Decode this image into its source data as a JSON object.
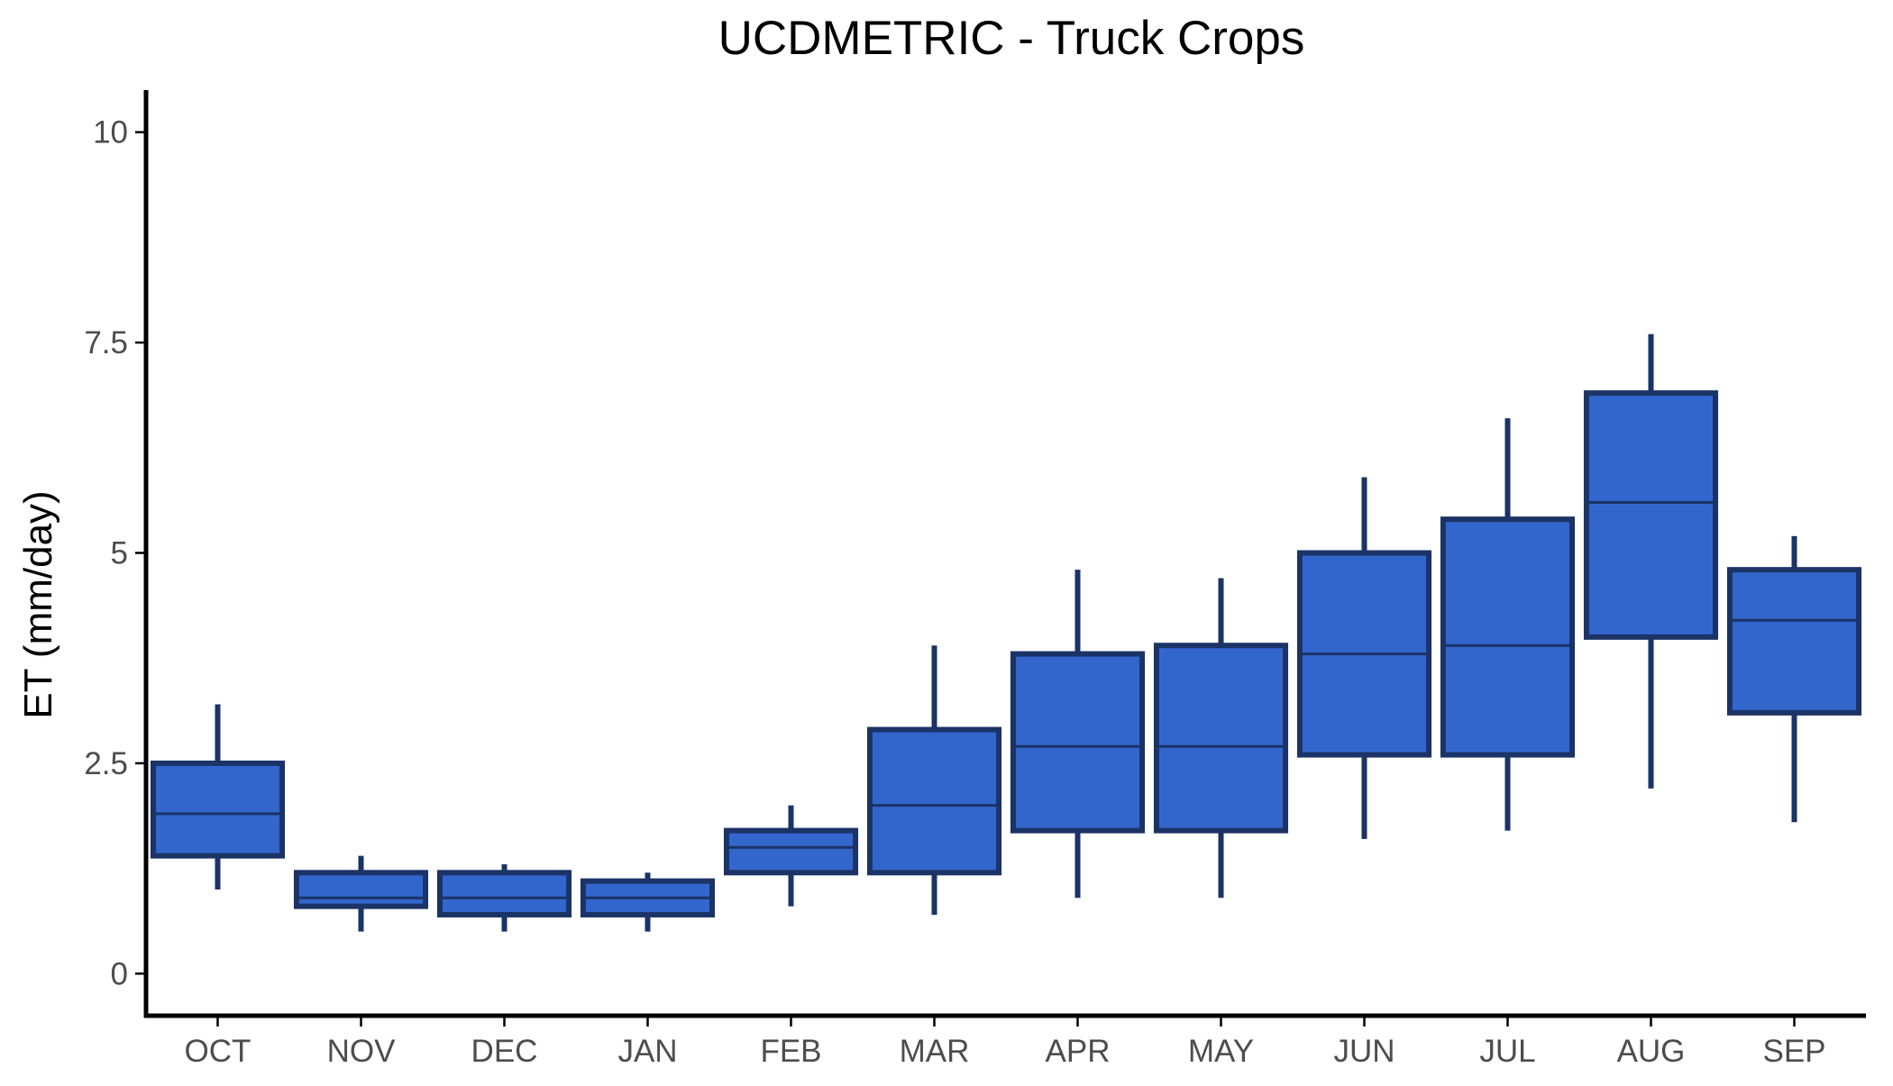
{
  "chart_data": {
    "type": "box",
    "title": "UCDMETRIC - Truck Crops",
    "xlabel": "",
    "ylabel": "ET (mm/day)",
    "ylim": [
      -0.5,
      10.5
    ],
    "yticks": [
      0,
      2.5,
      5,
      7.5,
      10
    ],
    "ytick_labels": [
      "0",
      "2.5",
      "5",
      "7.5",
      "10"
    ],
    "grid": false,
    "legend": "none",
    "colors": {
      "box_fill": "#3366CC",
      "box_stroke": "#1B3366",
      "axis": "#000000",
      "tick_text": "#4D4D4D"
    },
    "categories": [
      "OCT",
      "NOV",
      "DEC",
      "JAN",
      "FEB",
      "MAR",
      "APR",
      "MAY",
      "JUN",
      "JUL",
      "AUG",
      "SEP"
    ],
    "boxes": [
      {
        "min": 1.0,
        "q1": 1.4,
        "median": 1.9,
        "q3": 2.5,
        "max": 3.2
      },
      {
        "min": 0.5,
        "q1": 0.8,
        "median": 0.9,
        "q3": 1.2,
        "max": 1.4
      },
      {
        "min": 0.5,
        "q1": 0.7,
        "median": 0.9,
        "q3": 1.2,
        "max": 1.3
      },
      {
        "min": 0.5,
        "q1": 0.7,
        "median": 0.9,
        "q3": 1.1,
        "max": 1.2
      },
      {
        "min": 0.8,
        "q1": 1.2,
        "median": 1.5,
        "q3": 1.7,
        "max": 2.0
      },
      {
        "min": 0.7,
        "q1": 1.2,
        "median": 2.0,
        "q3": 2.9,
        "max": 3.9
      },
      {
        "min": 0.9,
        "q1": 1.7,
        "median": 2.7,
        "q3": 3.8,
        "max": 4.8
      },
      {
        "min": 0.9,
        "q1": 1.7,
        "median": 2.7,
        "q3": 3.9,
        "max": 4.7
      },
      {
        "min": 1.6,
        "q1": 2.6,
        "median": 3.8,
        "q3": 5.0,
        "max": 5.9
      },
      {
        "min": 1.7,
        "q1": 2.6,
        "median": 3.9,
        "q3": 5.4,
        "max": 6.6
      },
      {
        "min": 2.2,
        "q1": 4.0,
        "median": 5.6,
        "q3": 6.9,
        "max": 7.6
      },
      {
        "min": 1.8,
        "q1": 3.1,
        "median": 4.2,
        "q3": 4.8,
        "max": 5.2
      }
    ]
  }
}
